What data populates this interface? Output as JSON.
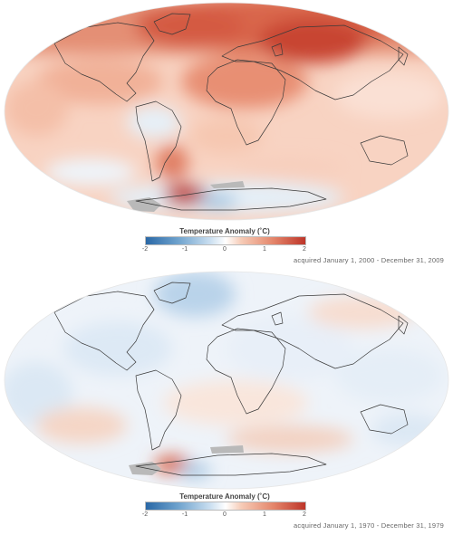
{
  "maps": [
    {
      "legend_title": "Temperature Anomaly (˚C)",
      "ticks": [
        "-2",
        "-1",
        "0",
        "1",
        "2"
      ],
      "caption": "acquired January 1, 2000 - December 31, 2009",
      "theme": "warm"
    },
    {
      "legend_title": "Temperature Anomaly (˚C)",
      "ticks": [
        "-2",
        "-1",
        "0",
        "1",
        "2"
      ],
      "caption": "acquired January 1, 1970 - December 31, 1979",
      "theme": "cool"
    }
  ],
  "colors": {
    "cold_strong": "#2a68a6",
    "neutral": "#ffffff",
    "warm_strong": "#bd3529",
    "no_data": "#b9b9b9",
    "coastline": "#3a3a3a"
  }
}
